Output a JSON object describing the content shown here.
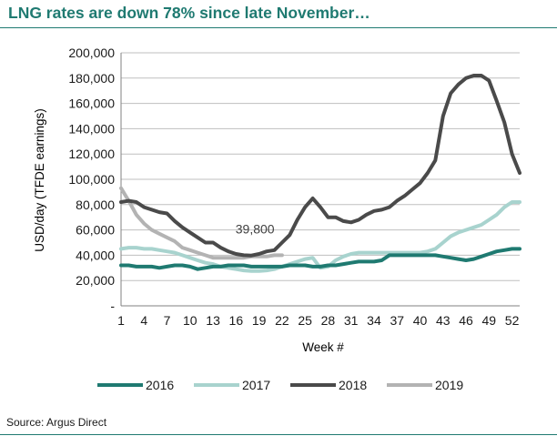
{
  "title": "LNG rates are down 78% since late November…",
  "source": "Source: Argus Direct",
  "chart_data": {
    "type": "line",
    "ylabel": "USD/day (TFDE earnings)",
    "xlabel": "Week #",
    "ylim": [
      0,
      200000
    ],
    "yticks": [
      0,
      20000,
      40000,
      60000,
      80000,
      100000,
      120000,
      140000,
      160000,
      180000,
      200000
    ],
    "ytick_labels": [
      "-",
      "20,000",
      "40,000",
      "60,000",
      "80,000",
      "100,000",
      "120,000",
      "140,000",
      "160,000",
      "180,000",
      "200,000"
    ],
    "xlim": [
      1,
      53
    ],
    "xticks": [
      1,
      4,
      7,
      10,
      13,
      16,
      19,
      22,
      25,
      28,
      31,
      34,
      37,
      40,
      43,
      46,
      49,
      52
    ],
    "xtick_labels": [
      "1",
      "4",
      "7",
      "10",
      "13",
      "16",
      "19",
      "22",
      "25",
      "28",
      "31",
      "34",
      "37",
      "40",
      "43",
      "46",
      "49",
      "52"
    ],
    "grid": true,
    "legend_position": "bottom",
    "annotations": [
      {
        "text": "39,800",
        "x": 18,
        "y": 39800
      }
    ],
    "series": [
      {
        "name": "2016",
        "color": "#1f7a71",
        "x": [
          1,
          2,
          3,
          4,
          5,
          6,
          7,
          8,
          9,
          10,
          11,
          12,
          13,
          14,
          15,
          16,
          17,
          18,
          19,
          20,
          21,
          22,
          23,
          24,
          25,
          26,
          27,
          28,
          29,
          30,
          31,
          32,
          33,
          34,
          35,
          36,
          37,
          38,
          39,
          40,
          41,
          42,
          43,
          44,
          45,
          46,
          47,
          48,
          49,
          50,
          51,
          52,
          53
        ],
        "values": [
          32000,
          32000,
          31000,
          31000,
          31000,
          30000,
          31000,
          32000,
          32000,
          31000,
          29000,
          30000,
          31000,
          31000,
          32000,
          32000,
          32000,
          31000,
          31000,
          31000,
          31000,
          31000,
          32000,
          32000,
          32000,
          31000,
          31000,
          32000,
          32000,
          33000,
          34000,
          35000,
          35000,
          35000,
          36000,
          40000,
          40000,
          40000,
          40000,
          40000,
          40000,
          40000,
          39000,
          38000,
          37000,
          36000,
          37000,
          39000,
          41000,
          43000,
          44000,
          45000,
          45000
        ]
      },
      {
        "name": "2017",
        "color": "#a8d3ce",
        "x": [
          1,
          2,
          3,
          4,
          5,
          6,
          7,
          8,
          9,
          10,
          11,
          12,
          13,
          14,
          15,
          16,
          17,
          18,
          19,
          20,
          21,
          22,
          23,
          24,
          25,
          26,
          27,
          28,
          29,
          30,
          31,
          32,
          33,
          34,
          35,
          36,
          37,
          38,
          39,
          40,
          41,
          42,
          43,
          44,
          45,
          46,
          47,
          48,
          49,
          50,
          51,
          52,
          53
        ],
        "values": [
          45000,
          46000,
          46000,
          45000,
          45000,
          44000,
          43000,
          42000,
          40000,
          38000,
          36000,
          34000,
          33000,
          31000,
          30000,
          29000,
          28000,
          27500,
          27500,
          28000,
          29000,
          31000,
          33000,
          35000,
          37000,
          38000,
          30000,
          31000,
          36000,
          39000,
          41000,
          42000,
          42000,
          42000,
          42000,
          42000,
          42000,
          42000,
          42000,
          42000,
          43000,
          45000,
          50000,
          55000,
          58000,
          60000,
          62000,
          64000,
          68000,
          72000,
          78000,
          82000,
          82000
        ]
      },
      {
        "name": "2018",
        "color": "#4a4a4a",
        "x": [
          1,
          2,
          3,
          4,
          5,
          6,
          7,
          8,
          9,
          10,
          11,
          12,
          13,
          14,
          15,
          16,
          17,
          18,
          19,
          20,
          21,
          22,
          23,
          24,
          25,
          26,
          27,
          28,
          29,
          30,
          31,
          32,
          33,
          34,
          35,
          36,
          37,
          38,
          39,
          40,
          41,
          42,
          43,
          44,
          45,
          46,
          47,
          48,
          49,
          50,
          51,
          52,
          53
        ],
        "values": [
          82000,
          83000,
          82000,
          78000,
          76000,
          74000,
          73000,
          67000,
          62000,
          58000,
          54000,
          50000,
          50000,
          46000,
          43000,
          41000,
          40000,
          39800,
          41000,
          43000,
          44000,
          50000,
          56000,
          68000,
          78000,
          85000,
          78000,
          70000,
          70000,
          67000,
          66000,
          68000,
          72000,
          75000,
          76000,
          78000,
          83000,
          87000,
          92000,
          97000,
          105000,
          115000,
          150000,
          168000,
          175000,
          180000,
          182000,
          182000,
          178000,
          162000,
          145000,
          120000,
          105000
        ]
      },
      {
        "name": "2019",
        "color": "#b3b3b3",
        "x": [
          1,
          2,
          3,
          4,
          5,
          6,
          7,
          8,
          9,
          10,
          11,
          12,
          13,
          14,
          15,
          16,
          17,
          18,
          19,
          20,
          21,
          22
        ],
        "values": [
          93000,
          83000,
          72000,
          65000,
          60000,
          57000,
          54000,
          51000,
          46000,
          44000,
          42000,
          40000,
          38000,
          38000,
          38000,
          38000,
          38000,
          39000,
          39000,
          39000,
          40000,
          40000
        ]
      }
    ]
  }
}
